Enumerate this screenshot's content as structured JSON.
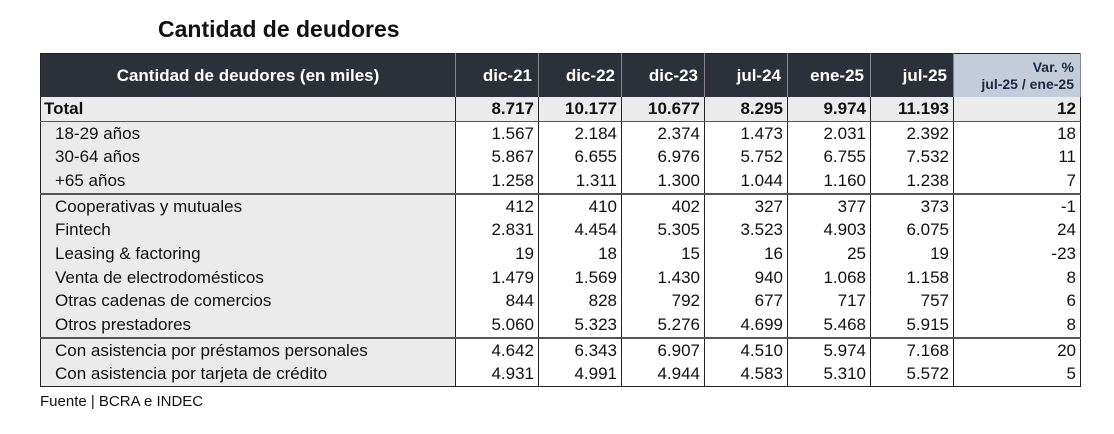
{
  "title": "Cantidad de deudores",
  "table": {
    "header_label": "Cantidad de deudores (en miles)",
    "columns": [
      "dic-21",
      "dic-22",
      "dic-23",
      "jul-24",
      "ene-25",
      "jul-25"
    ],
    "var_header_line1": "Var. %",
    "var_header_line2": "jul-25 / ene-25",
    "rows": [
      {
        "label": "Total",
        "values": [
          "8.717",
          "10.177",
          "10.677",
          "8.295",
          "9.974",
          "11.193"
        ],
        "var": "12"
      },
      {
        "label": "18-29 años",
        "values": [
          "1.567",
          "2.184",
          "2.374",
          "1.473",
          "2.031",
          "2.392"
        ],
        "var": "18"
      },
      {
        "label": "30-64 años",
        "values": [
          "5.867",
          "6.655",
          "6.976",
          "5.752",
          "6.755",
          "7.532"
        ],
        "var": "11"
      },
      {
        "label": "+65 años",
        "values": [
          "1.258",
          "1.311",
          "1.300",
          "1.044",
          "1.160",
          "1.238"
        ],
        "var": "7"
      },
      {
        "label": "Cooperativas y mutuales",
        "values": [
          "412",
          "410",
          "402",
          "327",
          "377",
          "373"
        ],
        "var": "-1"
      },
      {
        "label": "Fintech",
        "values": [
          "2.831",
          "4.454",
          "5.305",
          "3.523",
          "4.903",
          "6.075"
        ],
        "var": "24"
      },
      {
        "label": "Leasing & factoring",
        "values": [
          "19",
          "18",
          "15",
          "16",
          "25",
          "19"
        ],
        "var": "-23"
      },
      {
        "label": "Venta de electrodomésticos",
        "values": [
          "1.479",
          "1.569",
          "1.430",
          "940",
          "1.068",
          "1.158"
        ],
        "var": "8"
      },
      {
        "label": "Otras cadenas de comercios",
        "values": [
          "844",
          "828",
          "792",
          "677",
          "717",
          "757"
        ],
        "var": "6"
      },
      {
        "label": "Otros prestadores",
        "values": [
          "5.060",
          "5.323",
          "5.276",
          "4.699",
          "5.468",
          "5.915"
        ],
        "var": "8"
      },
      {
        "label": "Con asistencia por préstamos personales",
        "values": [
          "4.642",
          "6.343",
          "6.907",
          "4.510",
          "5.974",
          "7.168"
        ],
        "var": "20"
      },
      {
        "label": "Con asistencia por tarjeta de crédito",
        "values": [
          "4.931",
          "4.991",
          "4.944",
          "4.583",
          "5.310",
          "5.572"
        ],
        "var": "5"
      }
    ]
  },
  "source": "Fuente | BCRA e INDEC"
}
